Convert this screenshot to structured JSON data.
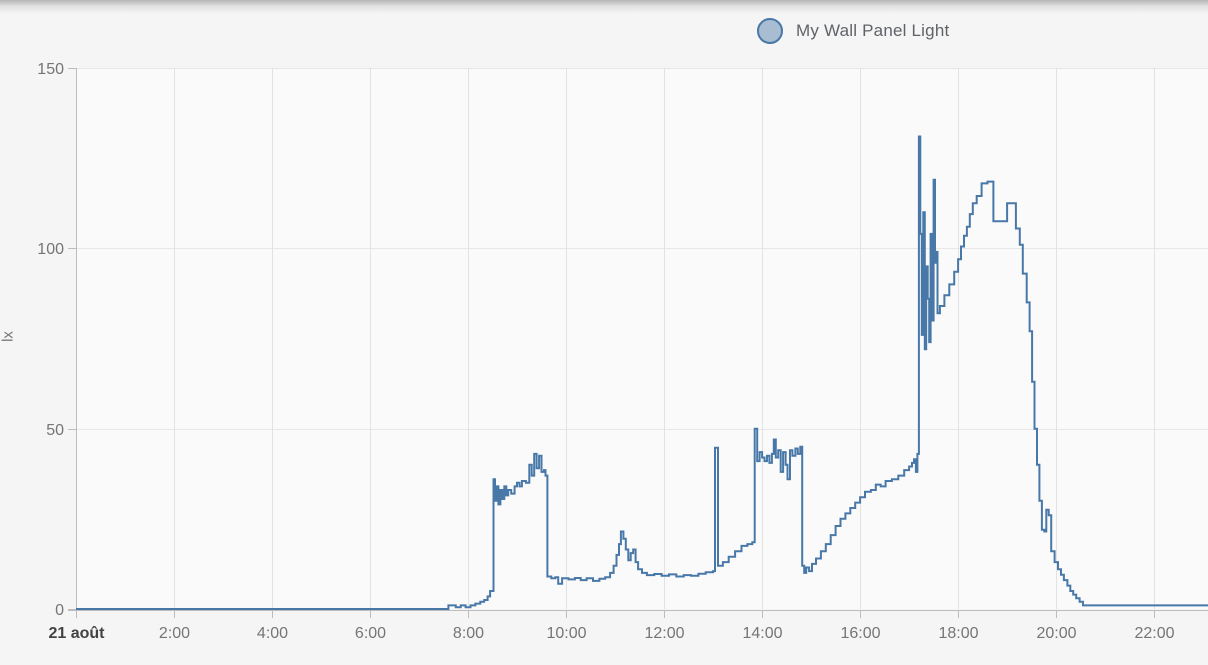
{
  "page": {
    "background": "#f5f5f5",
    "plot_background": "#fafafa"
  },
  "legend": {
    "items": [
      {
        "label": "My Wall Panel Light",
        "marker_fill": "#a9bdd2",
        "marker_border": "#4878a8"
      }
    ]
  },
  "chart_data": {
    "type": "line",
    "line_style": "step-after",
    "title": "",
    "xlabel": "",
    "ylabel": "lx",
    "grid": true,
    "legend_position": "top",
    "xlim": [
      0,
      23.1
    ],
    "ylim": [
      0,
      150
    ],
    "x_ticks": [
      {
        "t": 0,
        "label": "21 août",
        "bold": true
      },
      {
        "t": 2,
        "label": "2:00"
      },
      {
        "t": 4,
        "label": "4:00"
      },
      {
        "t": 6,
        "label": "6:00"
      },
      {
        "t": 8,
        "label": "8:00"
      },
      {
        "t": 10,
        "label": "10:00"
      },
      {
        "t": 12,
        "label": "12:00"
      },
      {
        "t": 14,
        "label": "14:00"
      },
      {
        "t": 16,
        "label": "16:00"
      },
      {
        "t": 18,
        "label": "18:00"
      },
      {
        "t": 20,
        "label": "20:00"
      },
      {
        "t": 22,
        "label": "22:00"
      }
    ],
    "y_ticks": [
      {
        "v": 0,
        "label": "0"
      },
      {
        "v": 50,
        "label": "50"
      },
      {
        "v": 100,
        "label": "100"
      },
      {
        "v": 150,
        "label": "150"
      }
    ],
    "colors": {
      "line": "#4878a8",
      "grid_vertical": "#e2e2e2",
      "grid_horizontal": "#e7e7e7",
      "axis": "#bdbdbd",
      "tick_label": "#757575",
      "date_label": "#424242"
    },
    "series": [
      {
        "name": "My Wall Panel Light",
        "unit": "lx",
        "color": "#4878a8",
        "points": [
          [
            0,
            0
          ],
          [
            7.55,
            0
          ],
          [
            7.6,
            1
          ],
          [
            7.72,
            1
          ],
          [
            7.75,
            0.5
          ],
          [
            7.85,
            1
          ],
          [
            7.95,
            0.5
          ],
          [
            8.05,
            1
          ],
          [
            8.15,
            1.5
          ],
          [
            8.25,
            2
          ],
          [
            8.33,
            2.5
          ],
          [
            8.4,
            3.5
          ],
          [
            8.45,
            5
          ],
          [
            8.52,
            36
          ],
          [
            8.55,
            30
          ],
          [
            8.58,
            34
          ],
          [
            8.62,
            29
          ],
          [
            8.66,
            33
          ],
          [
            8.7,
            30.5
          ],
          [
            8.74,
            34
          ],
          [
            8.78,
            31.5
          ],
          [
            8.82,
            33
          ],
          [
            8.88,
            32
          ],
          [
            8.95,
            34
          ],
          [
            9.0,
            35
          ],
          [
            9.05,
            34
          ],
          [
            9.1,
            35.5
          ],
          [
            9.18,
            35
          ],
          [
            9.25,
            40
          ],
          [
            9.3,
            37
          ],
          [
            9.35,
            43
          ],
          [
            9.4,
            39
          ],
          [
            9.45,
            42.5
          ],
          [
            9.5,
            38
          ],
          [
            9.55,
            38.5
          ],
          [
            9.58,
            37
          ],
          [
            9.62,
            9
          ],
          [
            9.7,
            8.5
          ],
          [
            9.78,
            8.8
          ],
          [
            9.84,
            7
          ],
          [
            9.92,
            8.5
          ],
          [
            10.05,
            8.2
          ],
          [
            10.18,
            8.6
          ],
          [
            10.3,
            8
          ],
          [
            10.42,
            8.5
          ],
          [
            10.55,
            7.8
          ],
          [
            10.68,
            8.4
          ],
          [
            10.8,
            8.8
          ],
          [
            10.9,
            10
          ],
          [
            10.97,
            12
          ],
          [
            11.03,
            15
          ],
          [
            11.08,
            18
          ],
          [
            11.12,
            21.5
          ],
          [
            11.17,
            19.5
          ],
          [
            11.22,
            16.5
          ],
          [
            11.27,
            13.5
          ],
          [
            11.32,
            15.5
          ],
          [
            11.37,
            16.5
          ],
          [
            11.42,
            13
          ],
          [
            11.47,
            11
          ],
          [
            11.55,
            10
          ],
          [
            11.65,
            9.4
          ],
          [
            11.8,
            9.7
          ],
          [
            11.95,
            9.2
          ],
          [
            12.1,
            9.6
          ],
          [
            12.25,
            9
          ],
          [
            12.4,
            9.4
          ],
          [
            12.55,
            9.2
          ],
          [
            12.7,
            9.8
          ],
          [
            12.85,
            10.2
          ],
          [
            13.0,
            10.5
          ],
          [
            13.04,
            44.7
          ],
          [
            13.1,
            12
          ],
          [
            13.2,
            13
          ],
          [
            13.32,
            14.5
          ],
          [
            13.45,
            16
          ],
          [
            13.58,
            17.5
          ],
          [
            13.7,
            18
          ],
          [
            13.8,
            18.5
          ],
          [
            13.85,
            50
          ],
          [
            13.9,
            41
          ],
          [
            13.95,
            43.5
          ],
          [
            14.0,
            42
          ],
          [
            14.05,
            41
          ],
          [
            14.1,
            42.5
          ],
          [
            14.15,
            40.5
          ],
          [
            14.2,
            43
          ],
          [
            14.24,
            47
          ],
          [
            14.28,
            42
          ],
          [
            14.33,
            44
          ],
          [
            14.38,
            38
          ],
          [
            14.43,
            43.5
          ],
          [
            14.48,
            40
          ],
          [
            14.52,
            36
          ],
          [
            14.57,
            44
          ],
          [
            14.62,
            42.5
          ],
          [
            14.68,
            44.5
          ],
          [
            14.73,
            43
          ],
          [
            14.78,
            45
          ],
          [
            14.82,
            12
          ],
          [
            14.86,
            10
          ],
          [
            14.9,
            11.5
          ],
          [
            14.96,
            10.5
          ],
          [
            15.02,
            12.5
          ],
          [
            15.1,
            14
          ],
          [
            15.2,
            16
          ],
          [
            15.3,
            18
          ],
          [
            15.4,
            20.5
          ],
          [
            15.5,
            23
          ],
          [
            15.6,
            25
          ],
          [
            15.7,
            26.5
          ],
          [
            15.8,
            28
          ],
          [
            15.9,
            29.5
          ],
          [
            16.0,
            31
          ],
          [
            16.1,
            32.5
          ],
          [
            16.22,
            33
          ],
          [
            16.32,
            34.5
          ],
          [
            16.42,
            34
          ],
          [
            16.52,
            35.5
          ],
          [
            16.65,
            36
          ],
          [
            16.78,
            37
          ],
          [
            16.9,
            38.5
          ],
          [
            17.0,
            39.5
          ],
          [
            17.06,
            40.5
          ],
          [
            17.1,
            41.5
          ],
          [
            17.14,
            38
          ],
          [
            17.17,
            43
          ],
          [
            17.2,
            131
          ],
          [
            17.23,
            104
          ],
          [
            17.26,
            76
          ],
          [
            17.29,
            110
          ],
          [
            17.32,
            72
          ],
          [
            17.35,
            95
          ],
          [
            17.38,
            86
          ],
          [
            17.41,
            74
          ],
          [
            17.44,
            104
          ],
          [
            17.47,
            80
          ],
          [
            17.5,
            119
          ],
          [
            17.53,
            96
          ],
          [
            17.56,
            99
          ],
          [
            17.58,
            82
          ],
          [
            17.63,
            84
          ],
          [
            17.72,
            87
          ],
          [
            17.82,
            90
          ],
          [
            17.92,
            93.5
          ],
          [
            18.0,
            97
          ],
          [
            18.06,
            100.5
          ],
          [
            18.12,
            103.5
          ],
          [
            18.18,
            106
          ],
          [
            18.24,
            109.5
          ],
          [
            18.3,
            112.5
          ],
          [
            18.38,
            114.5
          ],
          [
            18.48,
            118
          ],
          [
            18.6,
            118.5
          ],
          [
            18.72,
            107.5
          ],
          [
            18.95,
            107.5
          ],
          [
            19.0,
            112.5
          ],
          [
            19.12,
            112.5
          ],
          [
            19.18,
            105.5
          ],
          [
            19.26,
            101
          ],
          [
            19.32,
            93
          ],
          [
            19.4,
            85
          ],
          [
            19.46,
            77
          ],
          [
            19.51,
            63
          ],
          [
            19.56,
            50
          ],
          [
            19.61,
            40
          ],
          [
            19.66,
            30
          ],
          [
            19.71,
            22
          ],
          [
            19.76,
            21.5
          ],
          [
            19.8,
            27.5
          ],
          [
            19.85,
            26
          ],
          [
            19.9,
            16
          ],
          [
            19.97,
            13
          ],
          [
            20.04,
            11
          ],
          [
            20.1,
            9.5
          ],
          [
            20.16,
            8
          ],
          [
            20.23,
            6.5
          ],
          [
            20.29,
            5
          ],
          [
            20.35,
            4
          ],
          [
            20.41,
            3
          ],
          [
            20.48,
            2
          ],
          [
            20.55,
            1
          ],
          [
            23.1,
            0.8
          ]
        ]
      }
    ]
  }
}
